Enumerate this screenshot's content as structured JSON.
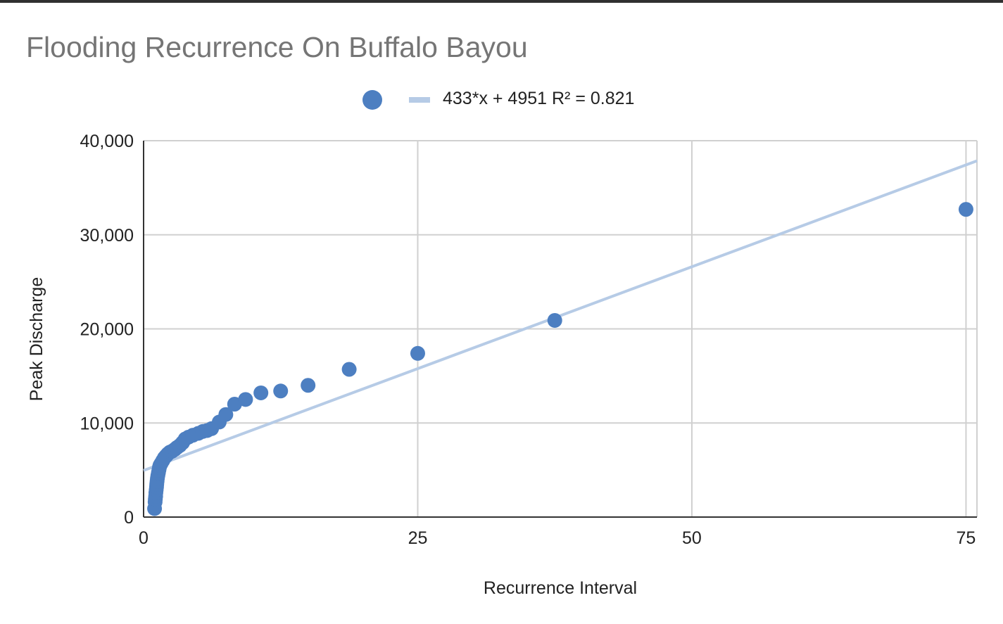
{
  "chart_data": {
    "type": "scatter",
    "title": "Flooding Recurrence On Buffalo Bayou",
    "xlabel": "Recurrence Interval",
    "ylabel": "Peak Discharge",
    "xlim": [
      0,
      76
    ],
    "ylim": [
      0,
      40000
    ],
    "x_ticks": [
      0,
      25,
      50,
      75
    ],
    "x_tick_labels": [
      "0",
      "25",
      "50",
      "75"
    ],
    "y_ticks": [
      0,
      10000,
      20000,
      30000,
      40000
    ],
    "y_tick_labels": [
      "0",
      "10,000",
      "20,000",
      "30,000",
      "40,000"
    ],
    "grid": true,
    "legend_position": "top-center",
    "colors": {
      "points": "#4d7fc1",
      "trendline": "#b6cbe6",
      "grid": "#d0d0d0",
      "axis": "#333333",
      "title": "#757575"
    },
    "series": [
      {
        "type": "scatter",
        "points": [
          [
            1.0,
            900
          ],
          [
            1.05,
            1600
          ],
          [
            1.07,
            1900
          ],
          [
            1.1,
            2200
          ],
          [
            1.12,
            2600
          ],
          [
            1.15,
            2900
          ],
          [
            1.18,
            3200
          ],
          [
            1.2,
            3500
          ],
          [
            1.23,
            3800
          ],
          [
            1.26,
            4100
          ],
          [
            1.3,
            4400
          ],
          [
            1.35,
            4700
          ],
          [
            1.4,
            5000
          ],
          [
            1.45,
            5300
          ],
          [
            1.5,
            5500
          ],
          [
            1.6,
            5700
          ],
          [
            1.75,
            6000
          ],
          [
            1.9,
            6300
          ],
          [
            2.05,
            6500
          ],
          [
            2.2,
            6700
          ],
          [
            2.4,
            6900
          ],
          [
            2.6,
            7000
          ],
          [
            2.85,
            7200
          ],
          [
            3.05,
            7400
          ],
          [
            3.3,
            7600
          ],
          [
            3.55,
            7900
          ],
          [
            3.8,
            8300
          ],
          [
            4.1,
            8500
          ],
          [
            4.5,
            8700
          ],
          [
            5.0,
            8900
          ],
          [
            5.4,
            9100
          ],
          [
            5.8,
            9200
          ],
          [
            6.2,
            9400
          ],
          [
            6.9,
            10100
          ],
          [
            7.5,
            10900
          ],
          [
            8.3,
            12000
          ],
          [
            9.3,
            12500
          ],
          [
            10.7,
            13200
          ],
          [
            12.5,
            13400
          ],
          [
            15.0,
            14000
          ],
          [
            18.75,
            15700
          ],
          [
            25.0,
            17400
          ],
          [
            37.5,
            20900
          ],
          [
            75.0,
            32700
          ]
        ]
      },
      {
        "type": "trendline",
        "name": "433*x + 4951 R² = 0.821",
        "slope": 433,
        "intercept": 4951
      }
    ]
  }
}
